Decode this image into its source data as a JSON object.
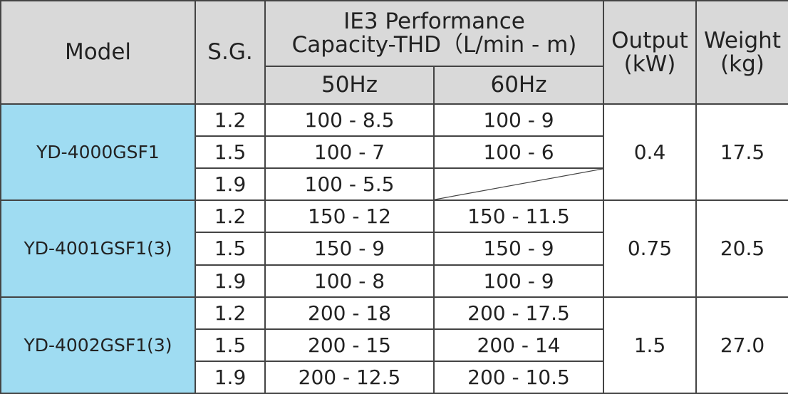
{
  "header": {
    "model": "Model",
    "sg": "S.G.",
    "performance_line1": "IE3  Performance",
    "performance_line2": "Capacity-THD（L/min - m)",
    "hz50": "50Hz",
    "hz60": "60Hz",
    "output_line1": "Output",
    "output_line2": "(kW)",
    "weight_line1": "Weight",
    "weight_line2": "(kg)"
  },
  "groups": [
    {
      "model": "YD-4000GSF1",
      "output": "0.4",
      "weight": "17.5",
      "rows": [
        {
          "sg": "1.2",
          "hz50": "100 -  8.5",
          "hz60": "100 -  9"
        },
        {
          "sg": "1.5",
          "hz50": "100 -  7",
          "hz60": "100 -  6"
        },
        {
          "sg": "1.9",
          "hz50": "100 -  5.5"
        }
      ]
    },
    {
      "model": "YD-4001GSF1(3)",
      "output": "0.75",
      "weight": "20.5",
      "rows": [
        {
          "sg": "1.2",
          "hz50": "150 - 12",
          "hz60": "150 -  11.5"
        },
        {
          "sg": "1.5",
          "hz50": "150 -  9",
          "hz60": "150 -  9"
        },
        {
          "sg": "1.9",
          "hz50": "100 -  8",
          "hz60": "100 -  9"
        }
      ]
    },
    {
      "model": "YD-4002GSF1(3)",
      "output": "1.5",
      "weight": "27.0",
      "rows": [
        {
          "sg": "1.2",
          "hz50": "200 - 18",
          "hz60": "200 - 17.5"
        },
        {
          "sg": "1.5",
          "hz50": "200 - 15",
          "hz60": "200 - 14"
        },
        {
          "sg": "1.9",
          "hz50": "200 - 12.5",
          "hz60": "200 - 10.5"
        }
      ]
    }
  ]
}
